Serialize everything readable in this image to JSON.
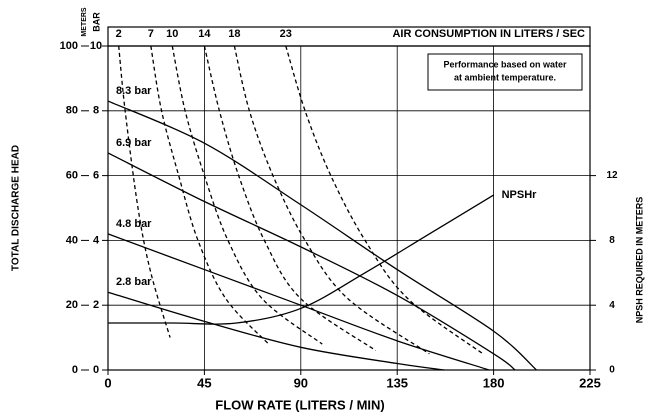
{
  "chart_data": {
    "type": "line",
    "title": "AIR CONSUMPTION IN LITERS / SEC",
    "x_label": "FLOW RATE (LITERS / MIN)",
    "y_label": "TOTAL DISCHARGE HEAD",
    "y_unit": "METERS",
    "y2_label": "NPSH REQUIRED IN METERS",
    "bar_unit": "BAR",
    "annotation": [
      "Performance based on water",
      "at ambient temperature."
    ],
    "xlim": [
      0,
      225
    ],
    "xticks": [
      0,
      45,
      90,
      135,
      180,
      225
    ],
    "ylim": [
      0,
      100
    ],
    "yticks": [
      0,
      20,
      40,
      60,
      80,
      100
    ],
    "barlim": [
      0,
      10
    ],
    "barticks": [
      0,
      2,
      4,
      6,
      8,
      10
    ],
    "y2lim": [
      0,
      20
    ],
    "y2ticks": [
      0,
      4,
      8,
      12
    ],
    "grid": true,
    "series": [
      {
        "name": "8.3 bar",
        "color": "#000000",
        "dash": false,
        "label_position": "start",
        "x": [
          0,
          45,
          90,
          135,
          180,
          200
        ],
        "values": [
          83,
          70,
          51,
          31,
          12,
          0
        ]
      },
      {
        "name": "6.9 bar",
        "color": "#000000",
        "dash": false,
        "label_position": "start",
        "x": [
          0,
          45,
          90,
          135,
          180,
          190
        ],
        "values": [
          67,
          52,
          38,
          23,
          5,
          0
        ]
      },
      {
        "name": "4.8 bar",
        "color": "#000000",
        "dash": false,
        "label_position": "start",
        "x": [
          0,
          45,
          90,
          135,
          178
        ],
        "values": [
          42,
          31,
          20,
          9,
          0
        ]
      },
      {
        "name": "2.8 bar",
        "color": "#000000",
        "dash": false,
        "label_position": "start",
        "x": [
          0,
          45,
          90,
          135,
          157
        ],
        "values": [
          24,
          15,
          7,
          2,
          0
        ]
      },
      {
        "name": "2",
        "color": "#000000",
        "dash": true,
        "label_position": "top",
        "x": [
          5,
          8,
          14,
          20,
          29
        ],
        "values": [
          100,
          80,
          50,
          30,
          10
        ]
      },
      {
        "name": "7",
        "color": "#000000",
        "dash": true,
        "label_position": "top",
        "x": [
          20,
          25,
          33,
          42,
          55,
          75
        ],
        "values": [
          100,
          80,
          60,
          40,
          22,
          8
        ]
      },
      {
        "name": "10",
        "color": "#000000",
        "dash": true,
        "label_position": "top",
        "x": [
          30,
          36,
          45,
          56,
          72,
          100
        ],
        "values": [
          100,
          80,
          60,
          40,
          22,
          8
        ]
      },
      {
        "name": "14",
        "color": "#000000",
        "dash": true,
        "label_position": "top",
        "x": [
          45,
          52,
          61,
          73,
          90,
          125
        ],
        "values": [
          100,
          80,
          60,
          40,
          22,
          6
        ]
      },
      {
        "name": "18",
        "color": "#000000",
        "dash": true,
        "label_position": "top",
        "x": [
          59,
          66,
          77,
          92,
          112,
          150
        ],
        "values": [
          100,
          80,
          60,
          40,
          22,
          5
        ]
      },
      {
        "name": "23",
        "color": "#000000",
        "dash": true,
        "label_position": "top",
        "x": [
          83,
          92,
          104,
          120,
          140,
          175
        ],
        "values": [
          100,
          80,
          60,
          40,
          22,
          5
        ]
      },
      {
        "name": "NPSHr",
        "color": "#000000",
        "dash": false,
        "label_position": "end",
        "axis": "y2",
        "x": [
          0,
          30,
          60,
          90,
          120,
          150,
          180
        ],
        "values": [
          2.9,
          2.9,
          2.9,
          3.8,
          6,
          8.4,
          10.8
        ]
      }
    ]
  }
}
